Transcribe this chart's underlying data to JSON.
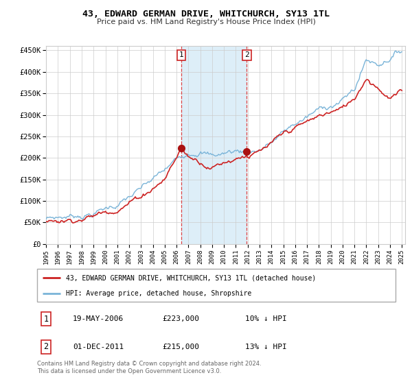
{
  "title": "43, EDWARD GERMAN DRIVE, WHITCHURCH, SY13 1TL",
  "subtitle": "Price paid vs. HM Land Registry's House Price Index (HPI)",
  "yticks": [
    0,
    50000,
    100000,
    150000,
    200000,
    250000,
    300000,
    350000,
    400000,
    450000
  ],
  "ytick_labels": [
    "£0",
    "£50K",
    "£100K",
    "£150K",
    "£200K",
    "£250K",
    "£300K",
    "£350K",
    "£400K",
    "£450K"
  ],
  "x_start_year": 1995,
  "x_end_year": 2025,
  "sale1_date": 2006.38,
  "sale1_price": 223000,
  "sale1_label": "1",
  "sale2_date": 2011.92,
  "sale2_price": 215000,
  "sale2_label": "2",
  "hpi_color": "#7ab4d8",
  "hpi_fill_color": "#ddeef8",
  "price_color": "#cc2222",
  "sale_marker_color": "#aa1111",
  "vline_color": "#dd3333",
  "legend1_text": "43, EDWARD GERMAN DRIVE, WHITCHURCH, SY13 1TL (detached house)",
  "legend2_text": "HPI: Average price, detached house, Shropshire",
  "table_row1": [
    "1",
    "19-MAY-2006",
    "£223,000",
    "10% ↓ HPI"
  ],
  "table_row2": [
    "2",
    "01-DEC-2011",
    "£215,000",
    "13% ↓ HPI"
  ],
  "footnote": "Contains HM Land Registry data © Crown copyright and database right 2024.\nThis data is licensed under the Open Government Licence v3.0.",
  "background_color": "#ffffff",
  "plot_bg_color": "#ffffff",
  "grid_color": "#cccccc"
}
